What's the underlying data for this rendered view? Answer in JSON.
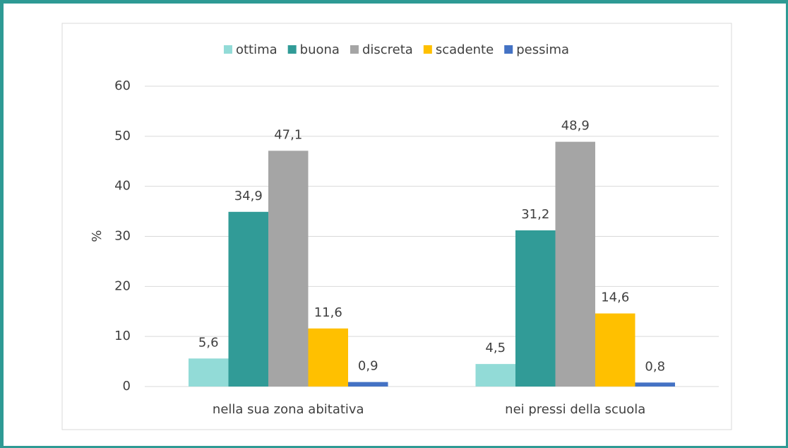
{
  "chart_data": {
    "type": "bar",
    "y_label": "%",
    "categories": [
      "nella sua zona abitativa",
      "nei pressi della scuola"
    ],
    "series": [
      {
        "name": "ottima",
        "color": "#92dbd7",
        "values": [
          5.6,
          4.5
        ],
        "value_labels": [
          "5,6",
          "4,5"
        ]
      },
      {
        "name": "buona",
        "color": "#319b97",
        "values": [
          34.9,
          31.2
        ],
        "value_labels": [
          "34,9",
          "31,2"
        ]
      },
      {
        "name": "discreta",
        "color": "#a5a5a5",
        "values": [
          47.1,
          48.9
        ],
        "value_labels": [
          "47,1",
          "48,9"
        ]
      },
      {
        "name": "scadente",
        "color": "#ffc000",
        "values": [
          11.6,
          14.6
        ],
        "value_labels": [
          "11,6",
          "14,6"
        ]
      },
      {
        "name": "pessima",
        "color": "#4472c4",
        "values": [
          0.9,
          0.8
        ],
        "value_labels": [
          "0,9",
          "0,8"
        ]
      }
    ],
    "ylim": [
      0,
      60
    ],
    "yticks": [
      0,
      10,
      20,
      30,
      40,
      50,
      60
    ],
    "grid": true,
    "legend": "top"
  }
}
